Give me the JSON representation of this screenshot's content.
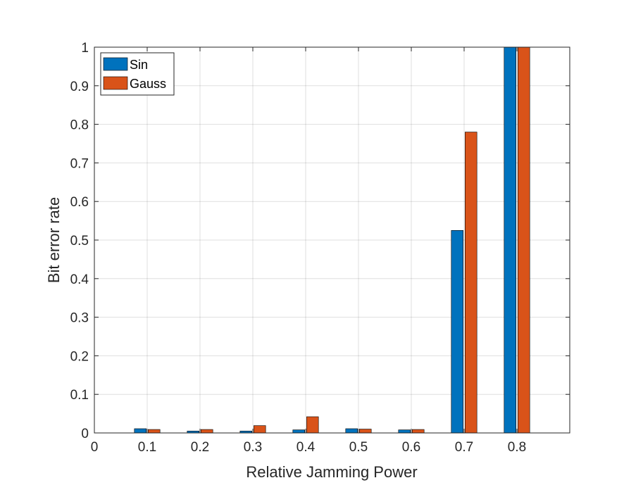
{
  "chart_data": {
    "type": "bar",
    "xlabel": "Relative Jamming Power",
    "ylabel": "Bit error rate",
    "xlim": [
      0,
      0.9
    ],
    "ylim": [
      0,
      1
    ],
    "grid": true,
    "legend_position": "top-left",
    "x_ticks": [
      "0",
      "0.1",
      "0.2",
      "0.3",
      "0.4",
      "0.5",
      "0.6",
      "0.7",
      "0.8"
    ],
    "y_ticks": [
      "0",
      "0.1",
      "0.2",
      "0.3",
      "0.4",
      "0.5",
      "0.6",
      "0.7",
      "0.8",
      "0.9",
      "1"
    ],
    "categories": [
      0.1,
      0.2,
      0.3,
      0.4,
      0.5,
      0.6,
      0.7,
      0.8
    ],
    "series": [
      {
        "name": "Sin",
        "color": "#0072BD",
        "values": [
          0.011,
          0.005,
          0.005,
          0.008,
          0.011,
          0.008,
          0.525,
          1.0
        ]
      },
      {
        "name": "Gauss",
        "color": "#D95319",
        "values": [
          0.009,
          0.009,
          0.019,
          0.042,
          0.01,
          0.009,
          0.78,
          1.0
        ]
      }
    ]
  }
}
